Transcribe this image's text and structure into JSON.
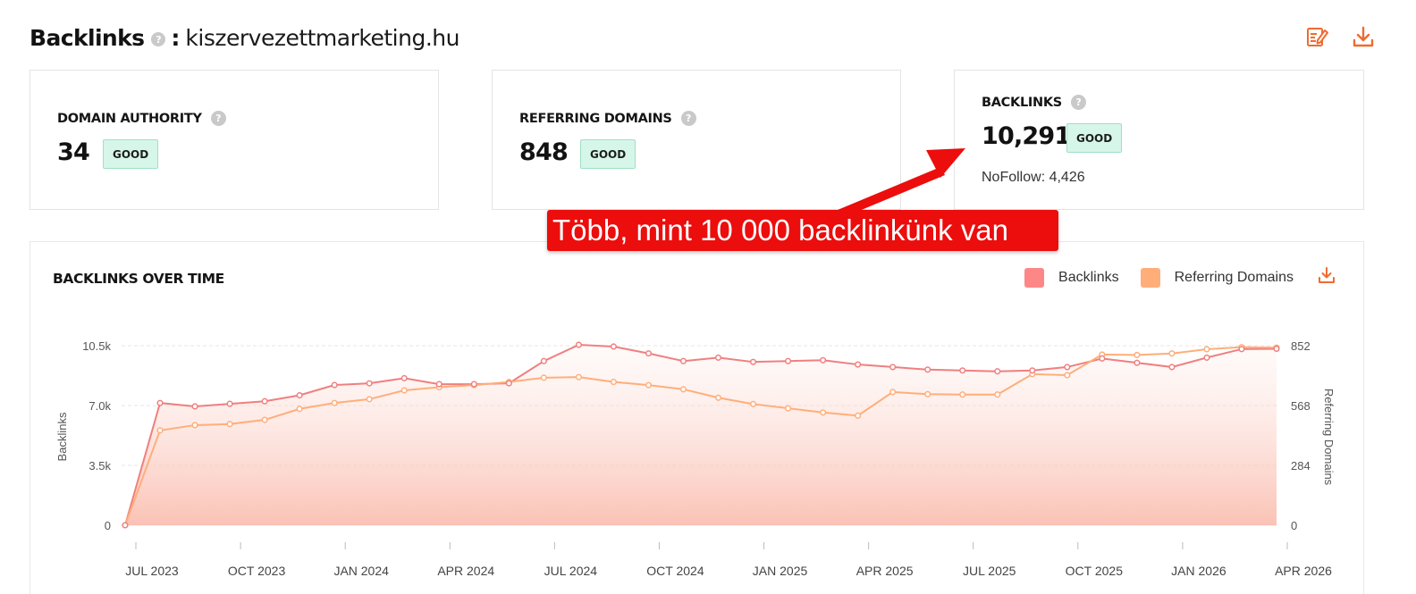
{
  "header": {
    "title": "Backlinks",
    "help": "?",
    "separator": ":",
    "domain": "kiszervezettmarketing.hu"
  },
  "actions": {
    "report_icon": "edit-report-icon",
    "download_icon": "download-icon",
    "accent_color": "#f06b30"
  },
  "cards": {
    "domain_authority": {
      "label": "DOMAIN AUTHORITY",
      "value": "34",
      "badge": "GOOD"
    },
    "referring_domains": {
      "label": "REFERRING DOMAINS",
      "value": "848",
      "badge": "GOOD"
    },
    "backlinks": {
      "label": "BACKLINKS",
      "value": "10,291",
      "badge": "GOOD",
      "nofollow": "NoFollow: 4,426"
    }
  },
  "annotation": {
    "text": "Több, mint 10 000 backlinkünk van",
    "color": "#ec0d0d"
  },
  "chart_panel": {
    "title": "BACKLINKS OVER TIME",
    "legend": [
      {
        "name": "Backlinks",
        "color": "#fd8787"
      },
      {
        "name": "Referring Domains",
        "color": "#ffae7a"
      }
    ]
  },
  "chart_data": {
    "type": "line",
    "title": "BACKLINKS OVER TIME",
    "ylabel": "Backlinks",
    "y2label": "Referring Domains",
    "ylim": [
      0,
      10500
    ],
    "y2lim": [
      0,
      852
    ],
    "yticks": [
      "0",
      "3.5k",
      "7.0k",
      "10.5k"
    ],
    "y2ticks": [
      "0",
      "284",
      "568",
      "852"
    ],
    "xticks": [
      "JUL 2023",
      "OCT 2023",
      "JAN 2024",
      "APR 2024",
      "JUL 2024",
      "OCT 2024",
      "JAN 2025",
      "APR 2025",
      "JUL 2025",
      "OCT 2025",
      "JAN 2026",
      "APR 2026"
    ],
    "grid": true,
    "legend_position": "top-right",
    "series": [
      {
        "name": "Backlinks",
        "axis": "left",
        "color": "#f07f7f",
        "values": [
          0,
          7150,
          6950,
          7100,
          7250,
          7600,
          8200,
          8300,
          8600,
          8250,
          8250,
          8300,
          9600,
          10550,
          10450,
          10050,
          9600,
          9800,
          9550,
          9600,
          9650,
          9400,
          9250,
          9100,
          9050,
          9000,
          9050,
          9250,
          9750,
          9500,
          9250,
          9800,
          10300,
          10320
        ]
      },
      {
        "name": "Referring Domains",
        "axis": "right",
        "color": "#ffae7a",
        "values": [
          0,
          450,
          475,
          480,
          500,
          552,
          580,
          598,
          640,
          655,
          665,
          680,
          700,
          703,
          680,
          665,
          645,
          605,
          575,
          555,
          535,
          520,
          632,
          622,
          620,
          620,
          717,
          712,
          810,
          808,
          815,
          835,
          845,
          843
        ]
      }
    ]
  }
}
